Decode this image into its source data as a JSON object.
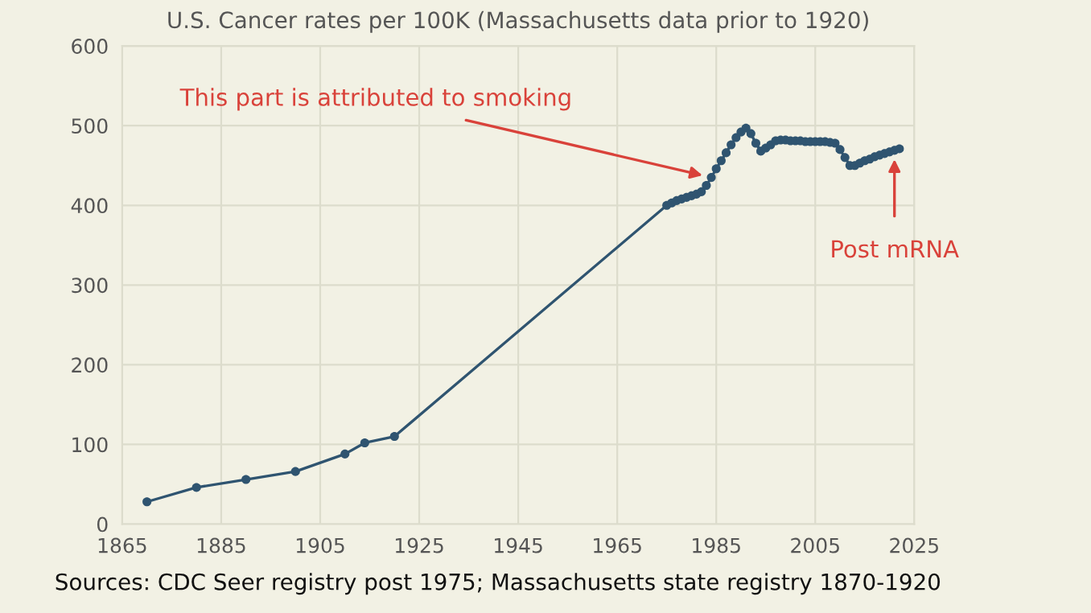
{
  "chart_data": {
    "type": "line",
    "title": "U.S. Cancer rates per 100K (Massachusetts data prior to 1920)",
    "x": [
      1870,
      1880,
      1890,
      1900,
      1910,
      1914,
      1920,
      1975,
      1976,
      1977,
      1978,
      1979,
      1980,
      1981,
      1982,
      1983,
      1984,
      1985,
      1986,
      1987,
      1988,
      1989,
      1990,
      1991,
      1992,
      1993,
      1994,
      1995,
      1996,
      1997,
      1998,
      1999,
      2000,
      2001,
      2002,
      2003,
      2004,
      2005,
      2006,
      2007,
      2008,
      2009,
      2010,
      2011,
      2012,
      2013,
      2014,
      2015,
      2016,
      2017,
      2018,
      2019,
      2020,
      2021,
      2022
    ],
    "series": [
      {
        "color": "#2f5470",
        "values": [
          28,
          46,
          56,
          66,
          88,
          102,
          110,
          400,
          403,
          406,
          408,
          410,
          412,
          414,
          417,
          425,
          435,
          446,
          456,
          466,
          476,
          485,
          492,
          497,
          490,
          478,
          468,
          472,
          476,
          481,
          482,
          482,
          481,
          481,
          481,
          480,
          480,
          480,
          480,
          480,
          479,
          478,
          470,
          460,
          450,
          450,
          453,
          456,
          458,
          461,
          463,
          465,
          467,
          469,
          471
        ]
      }
    ],
    "xlim": [
      1865,
      2025
    ],
    "xticks": [
      1865,
      1885,
      1905,
      1925,
      1945,
      1965,
      1985,
      2005,
      2025
    ],
    "ylim": [
      0,
      600
    ],
    "yticks": [
      0,
      100,
      200,
      300,
      400,
      500,
      600
    ],
    "grid": true,
    "marker": "circle",
    "line_style": "solid",
    "annotations": [
      {
        "text": "This part is attributed to smoking",
        "x": 1984,
        "y": 435
      },
      {
        "text": "Post mRNA",
        "x": 2021,
        "y": 469
      },
      "Sources: CDC Seer registry post 1975; Massachusetts state registry 1870-1920"
    ]
  }
}
